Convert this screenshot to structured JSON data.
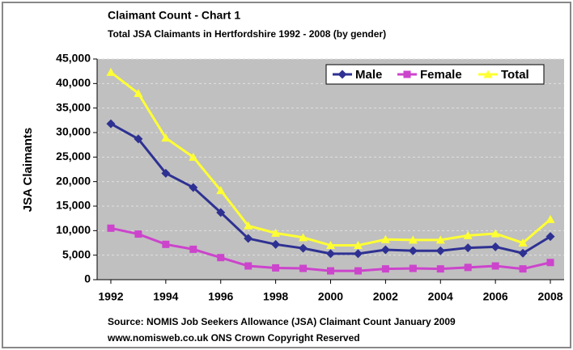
{
  "chart_data": {
    "type": "line",
    "title": "Claimant Count - Chart 1",
    "subtitle": "Total JSA Claimants in Hertfordshire 1992 - 2008 (by gender)",
    "y_label": "JSA Claimants",
    "source": [
      "Source: NOMIS Job Seekers Allowance (JSA) Claimant Count January 2009",
      "www.nomisweb.co.uk ONS Crown Copyright Reserved"
    ],
    "x": [
      1992,
      1993,
      1994,
      1995,
      1996,
      1997,
      1998,
      1999,
      2000,
      2001,
      2002,
      2003,
      2004,
      2005,
      2006,
      2007,
      2008
    ],
    "series": [
      {
        "name": "Male",
        "color": "#2e3192",
        "marker": "diamond",
        "values": [
          31800,
          28700,
          21700,
          18800,
          13700,
          8400,
          7200,
          6400,
          5300,
          5300,
          6100,
          5900,
          5900,
          6500,
          6700,
          5400,
          8800
        ]
      },
      {
        "name": "Female",
        "color": "#cc44cc",
        "marker": "square",
        "values": [
          10500,
          9300,
          7200,
          6200,
          4500,
          2800,
          2400,
          2300,
          1800,
          1800,
          2200,
          2300,
          2200,
          2500,
          2800,
          2200,
          3500
        ]
      },
      {
        "name": "Total",
        "color": "#ffff33",
        "marker": "triangle",
        "values": [
          42300,
          38000,
          28900,
          25000,
          18200,
          11000,
          9500,
          8600,
          7000,
          7000,
          8200,
          8100,
          8100,
          9000,
          9400,
          7500,
          12300
        ]
      }
    ],
    "xlim": [
      1991.5,
      2008.5
    ],
    "xticks": [
      1992,
      1994,
      1996,
      1998,
      2000,
      2002,
      2004,
      2006,
      2008
    ],
    "ylim": [
      0,
      45000
    ],
    "yticks": [
      0,
      {
        "value": 5000,
        "label": "5,000"
      },
      {
        "value": 10000,
        "label": "10,000"
      },
      {
        "value": 15000,
        "label": "15,000"
      },
      {
        "value": 20000,
        "label": "20,000"
      },
      {
        "value": 25000,
        "label": "25,000"
      },
      {
        "value": 30000,
        "label": "30,000"
      },
      {
        "value": 35000,
        "label": "35,000"
      },
      {
        "value": 40000,
        "label": "40,000"
      },
      {
        "value": 45000,
        "label": "45,000"
      }
    ],
    "grid": true,
    "legend": "top-right"
  }
}
